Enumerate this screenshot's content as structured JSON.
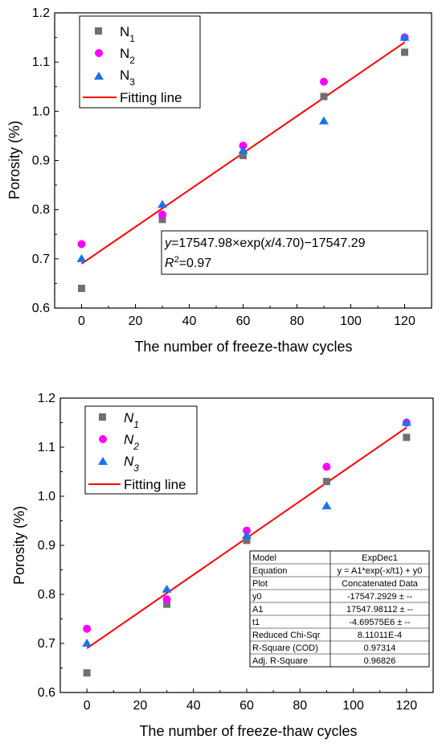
{
  "chart_data": [
    {
      "type": "scatter",
      "xlabel": "The number of freeze-thaw cycles",
      "ylabel": "Porosity (%)",
      "xlim": [
        -10,
        130
      ],
      "ylim": [
        0.6,
        1.2
      ],
      "xticks": [
        "0",
        "20",
        "40",
        "60",
        "80",
        "100",
        "120"
      ],
      "yticks": [
        "0.6",
        "0.7",
        "0.8",
        "0.9",
        "1.0",
        "1.1",
        "1.2"
      ],
      "grid": false,
      "legend_position": "top-left",
      "series": [
        {
          "name_main": "N",
          "name_sub": "1",
          "marker": "square",
          "color": "#707070",
          "x": [
            0,
            30,
            60,
            90,
            120
          ],
          "y": [
            0.64,
            0.78,
            0.91,
            1.03,
            1.12
          ]
        },
        {
          "name_main": "N",
          "name_sub": "2",
          "marker": "circle",
          "color": "#ff00ff",
          "x": [
            0,
            30,
            60,
            90,
            120
          ],
          "y": [
            0.73,
            0.79,
            0.93,
            1.06,
            1.15
          ]
        },
        {
          "name_main": "N",
          "name_sub": "3",
          "marker": "triangle",
          "color": "#1a73e8",
          "x": [
            0,
            30,
            60,
            90,
            120
          ],
          "y": [
            0.7,
            0.81,
            0.92,
            0.98,
            1.15
          ]
        }
      ],
      "fit": {
        "name": "Fitting line",
        "color": "#ff0000",
        "x": [
          0,
          120
        ],
        "y": [
          0.69,
          1.14
        ]
      },
      "annotation": {
        "y_var": "y",
        "eq_mid": "=17547.98×exp(",
        "x_var": "x",
        "eq_end": "/4.70)−17547.29",
        "r_label": "R",
        "r_sup": "2",
        "r_value": "=0.97"
      }
    },
    {
      "type": "scatter",
      "xlabel": "The number of freeze-thaw cycles",
      "ylabel": "Porosity (%)",
      "xlim": [
        -10,
        130
      ],
      "ylim": [
        0.6,
        1.2
      ],
      "xticks": [
        "0",
        "20",
        "40",
        "60",
        "80",
        "100",
        "120"
      ],
      "yticks": [
        "0.6",
        "0.7",
        "0.8",
        "0.9",
        "1.0",
        "1.1",
        "1.2"
      ],
      "grid": false,
      "legend_position": "top-left",
      "series": [
        {
          "name_main": "N",
          "name_sub": "1",
          "marker": "square",
          "color": "#707070",
          "x": [
            0,
            30,
            60,
            90,
            120
          ],
          "y": [
            0.64,
            0.78,
            0.91,
            1.03,
            1.12
          ]
        },
        {
          "name_main": "N",
          "name_sub": "2",
          "marker": "circle",
          "color": "#ff00ff",
          "x": [
            0,
            30,
            60,
            90,
            120
          ],
          "y": [
            0.73,
            0.79,
            0.93,
            1.06,
            1.15
          ]
        },
        {
          "name_main": "N",
          "name_sub": "3",
          "marker": "triangle",
          "color": "#1a73e8",
          "x": [
            0,
            30,
            60,
            90,
            120
          ],
          "y": [
            0.7,
            0.81,
            0.92,
            0.98,
            1.15
          ]
        }
      ],
      "fit": {
        "name": "Fitting line",
        "color": "#ff0000",
        "x": [
          0,
          120
        ],
        "y": [
          0.69,
          1.14
        ]
      },
      "table": [
        [
          "Model",
          "ExpDec1"
        ],
        [
          "Equation",
          "y = A1*exp(-x/t1) + y0"
        ],
        [
          "Plot",
          "Concatenated Data"
        ],
        [
          "y0",
          "-17547.2929 ± --"
        ],
        [
          "A1",
          "17547.98112 ± --"
        ],
        [
          "t1",
          "-4.69575E6 ± --"
        ],
        [
          "Reduced Chi-Sqr",
          "8.11011E-4"
        ],
        [
          "R-Square (COD)",
          "0.97314"
        ],
        [
          "Adj. R-Square",
          "0.96826"
        ]
      ]
    }
  ]
}
